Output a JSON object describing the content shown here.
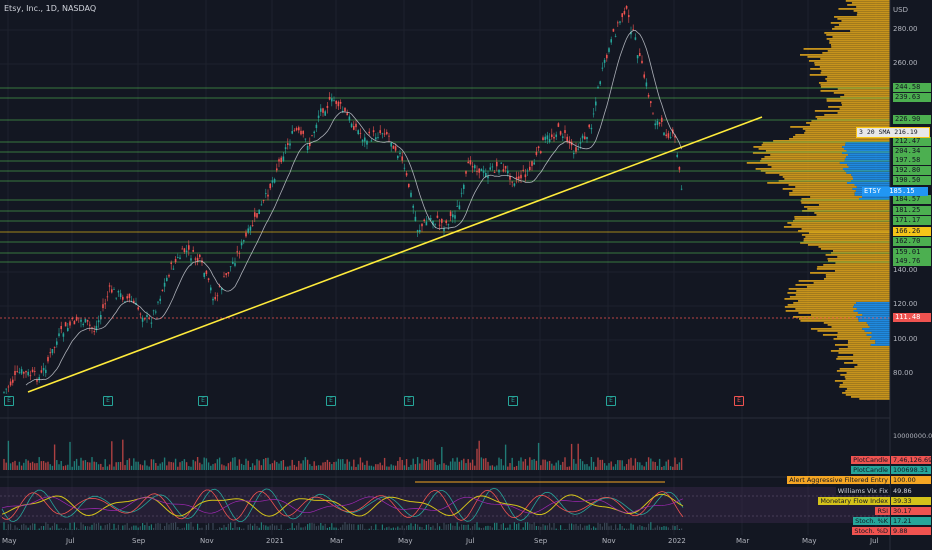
{
  "header": {
    "title": "Etsy, Inc., 1D, NASDAQ"
  },
  "axis": {
    "currency": "USD",
    "price_ticks": [
      "280.00",
      "260.00",
      "140.00",
      "120.00",
      "100.00",
      "80.00"
    ],
    "volume_tick": "10000000.00",
    "x_ticks": [
      "May",
      "Jul",
      "Sep",
      "Nov",
      "2021",
      "Mar",
      "May",
      "Jul",
      "Sep",
      "Nov",
      "2022",
      "Mar",
      "May",
      "Jul"
    ]
  },
  "price_levels": [
    {
      "label": "244.58",
      "color": "#4caf50"
    },
    {
      "label": "239.63",
      "color": "#4caf50"
    },
    {
      "label": "226.90",
      "color": "#4caf50"
    },
    {
      "label": "212.47",
      "color": "#4caf50"
    },
    {
      "label": "204.34",
      "color": "#4caf50"
    },
    {
      "label": "197.58",
      "color": "#4caf50"
    },
    {
      "label": "192.80",
      "color": "#4caf50"
    },
    {
      "label": "190.50",
      "color": "#4caf50"
    },
    {
      "label": "184.57",
      "color": "#4caf50"
    },
    {
      "label": "181.25",
      "color": "#4caf50"
    },
    {
      "label": "171.17",
      "color": "#4caf50"
    },
    {
      "label": "166.26",
      "color": "#f5c518"
    },
    {
      "label": "162.70",
      "color": "#4caf50"
    },
    {
      "label": "159.01",
      "color": "#4caf50"
    },
    {
      "label": "149.76",
      "color": "#4caf50"
    },
    {
      "label": "111.48",
      "color": "#ef5350"
    }
  ],
  "sma": {
    "label": "3 20 SMA",
    "value": "216.19"
  },
  "current": {
    "symbol": "ETSY",
    "price": "185.15"
  },
  "events": [
    "E",
    "E",
    "E",
    "E",
    "E",
    "E",
    "E"
  ],
  "future_event": "E",
  "indicators": [
    {
      "name": "PlotCandle",
      "value": "7,46,126.69",
      "color": "#ef5350"
    },
    {
      "name": "PlotCandle",
      "value": "100698.31",
      "color": "#26a69a"
    },
    {
      "name": "Alert Aggressive Filtered Entry",
      "value": "100.00",
      "color": "#f5a623"
    },
    {
      "name": "Williams Vix Fix",
      "value": "49.86",
      "color": "#131722"
    },
    {
      "name": "Monetary Flow Index",
      "value": "39.33",
      "color": "#d4c31a"
    },
    {
      "name": "RSI",
      "value": "30.17",
      "color": "#ef5350"
    },
    {
      "name": "Stoch. %K",
      "value": "17.21",
      "color": "#26a69a"
    },
    {
      "name": "Stoch. %D",
      "value": "9.88",
      "color": "#ef5350"
    }
  ],
  "colors": {
    "up": "#26a69a",
    "down": "#ef5350",
    "trend": "#ffeb3b",
    "profile_yellow": "#e6a91b",
    "profile_blue": "#2196f3"
  }
}
